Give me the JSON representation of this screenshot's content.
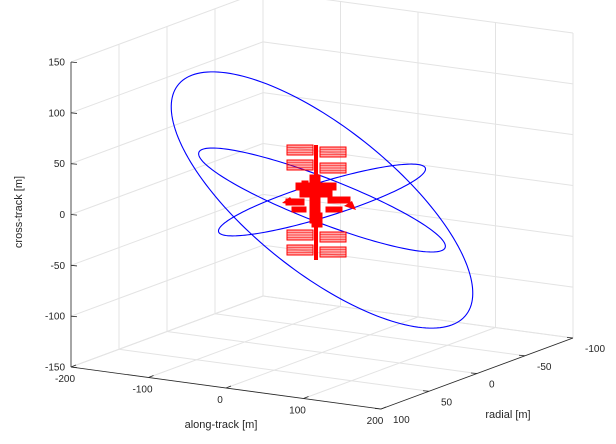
{
  "chart_data": {
    "type": "line",
    "projection": "3d",
    "title": "",
    "axes": {
      "cross_track": {
        "label": "cross-track [m]",
        "range": [
          -150,
          150
        ],
        "ticks": [
          -150,
          -100,
          -50,
          0,
          50,
          100,
          150
        ],
        "tick_labels": [
          "-150",
          "-100",
          "-50",
          "0",
          "50",
          "100",
          "150"
        ]
      },
      "along_track": {
        "label": "along-track [m]",
        "range": [
          -200,
          200
        ],
        "ticks": [
          -200,
          -100,
          0,
          100,
          200
        ],
        "tick_labels": [
          "-200",
          "-100",
          "0",
          "100",
          "200"
        ]
      },
      "radial": {
        "label": "radial [m]",
        "range": [
          -100,
          100
        ],
        "ticks": [
          -100,
          -50,
          0,
          50,
          100
        ],
        "tick_labels": [
          "-100",
          "-50",
          "0",
          "50",
          "100"
        ]
      }
    },
    "grid": true,
    "legend": "none",
    "series": [
      {
        "color": "#0000ff",
        "kind": "ellipse",
        "center": [
          0,
          0,
          0
        ],
        "along_track_semi_axis": 50,
        "radial_semi_axis": 100,
        "cross_track_amplitude": 0
      },
      {
        "color": "#0000ff",
        "kind": "ellipse",
        "center": [
          0,
          0,
          0
        ],
        "along_track_semi_axis": 100,
        "radial_semi_axis": 100,
        "cross_track_amplitude": 85
      },
      {
        "color": "#0000ff",
        "kind": "ellipse",
        "center": [
          0,
          0,
          0
        ],
        "along_track_semi_axis": 150,
        "radial_semi_axis": 100,
        "cross_track_amplitude": 160
      }
    ],
    "object": {
      "name": "space station model",
      "color": "#ff0000",
      "center": [
        0,
        0,
        0
      ]
    }
  }
}
